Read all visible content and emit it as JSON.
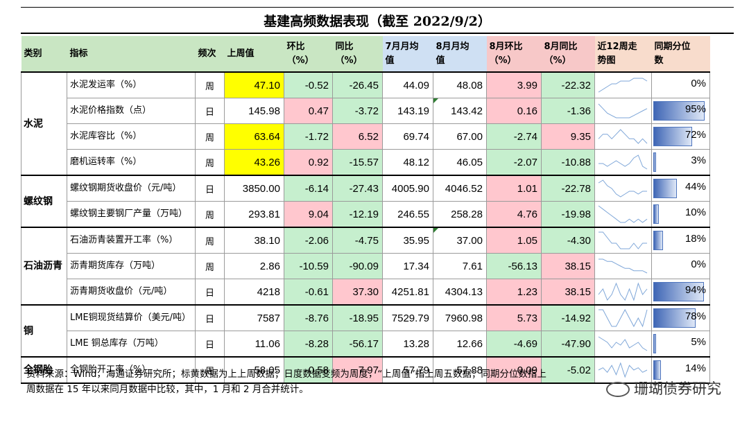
{
  "title": "基建高频数据表现（截至 2022/9/2）",
  "headers": {
    "cat": "类别",
    "indicator": "指标",
    "freq": "频次",
    "last": "上周值",
    "wow_l1": "环比",
    "wow_l2": "（%）",
    "yoy_l1": "同比",
    "yoy_l2": "（%）",
    "jul_l1": "7月月均",
    "jul_l2": "值",
    "aug_l1": "8月月均",
    "aug_l2": "值",
    "augwow_l1": "8月环比",
    "augwow_l2": "（%）",
    "augyoy_l1": "8月同比",
    "augyoy_l2": "（%）",
    "trend_l1": "近12周走",
    "trend_l2": "势图",
    "pctl_l1": "同期分位",
    "pctl_l2": "数"
  },
  "groups": [
    {
      "name": "水泥",
      "rows": 4
    },
    {
      "name": "螺纹钢",
      "rows": 2
    },
    {
      "name": "石油沥青",
      "rows": 3
    },
    {
      "name": "铜",
      "rows": 2
    },
    {
      "name": "全钢胎",
      "rows": 1
    }
  ],
  "rows": [
    {
      "name": "水泥发运率（%）",
      "freq": "周",
      "last": "47.10",
      "wow": "-0.52",
      "yoy": "-26.45",
      "jul": "44.09",
      "aug": "48.08",
      "augwow": "3.99",
      "augyoy": "-22.32",
      "pctl": "0%",
      "pv": 0
    },
    {
      "name": "水泥价格指数（点）",
      "freq": "日",
      "last": "145.98",
      "wow": "0.47",
      "yoy": "-3.72",
      "jul": "143.19",
      "aug": "143.42",
      "augwow": "0.16",
      "augyoy": "-1.36",
      "pctl": "95%",
      "pv": 0.95
    },
    {
      "name": "水泥库容比（%）",
      "freq": "周",
      "last": "63.64",
      "wow": "-1.72",
      "yoy": "6.52",
      "jul": "69.74",
      "aug": "67.00",
      "augwow": "-2.74",
      "augyoy": "9.35",
      "pctl": "72%",
      "pv": 0.72
    },
    {
      "name": "磨机运转率（%）",
      "freq": "周",
      "last": "43.26",
      "wow": "0.92",
      "yoy": "-15.57",
      "jul": "48.12",
      "aug": "46.05",
      "augwow": "-2.07",
      "augyoy": "-10.88",
      "pctl": "3%",
      "pv": 0.03
    },
    {
      "name": "螺纹钢期货收盘价（元/吨）",
      "freq": "日",
      "last": "3850.00",
      "wow": "-6.14",
      "yoy": "-27.43",
      "jul": "4005.90",
      "aug": "4046.52",
      "augwow": "1.01",
      "augyoy": "-22.78",
      "pctl": "44%",
      "pv": 0.44
    },
    {
      "name": "螺纹钢主要钢厂产量（万吨）",
      "freq": "周",
      "last": "293.81",
      "wow": "9.04",
      "yoy": "-12.19",
      "jul": "246.55",
      "aug": "258.28",
      "augwow": "4.76",
      "augyoy": "-19.98",
      "pctl": "10%",
      "pv": 0.1
    },
    {
      "name": "石油沥青装置开工率（%）",
      "freq": "周",
      "last": "38.10",
      "wow": "-2.06",
      "yoy": "-4.75",
      "jul": "35.95",
      "aug": "37.00",
      "augwow": "1.05",
      "augyoy": "-4.30",
      "pctl": "18%",
      "pv": 0.18
    },
    {
      "name": "沥青期货库存（万吨）",
      "freq": "周",
      "last": "2.86",
      "wow": "-10.59",
      "yoy": "-90.09",
      "jul": "17.34",
      "aug": "7.61",
      "augwow": "-56.13",
      "augyoy": "38.15",
      "pctl": "0%",
      "pv": 0
    },
    {
      "name": "沥青期货收盘价（元/吨）",
      "freq": "日",
      "last": "4218",
      "wow": "-0.61",
      "yoy": "37.30",
      "jul": "4251.81",
      "aug": "4304.13",
      "augwow": "1.23",
      "augyoy": "38.15",
      "pctl": "94%",
      "pv": 0.94
    },
    {
      "name": "LME铜现货结算价（美元/吨）",
      "freq": "日",
      "last": "7587",
      "wow": "-8.76",
      "yoy": "-18.95",
      "jul": "7529.79",
      "aug": "7960.98",
      "augwow": "5.73",
      "augyoy": "-14.92",
      "pctl": "78%",
      "pv": 0.78
    },
    {
      "name": "LME 铜总库存（万吨）",
      "freq": "日",
      "last": "11.06",
      "wow": "-8.28",
      "yoy": "-56.17",
      "jul": "13.28",
      "aug": "12.66",
      "augwow": "-4.69",
      "augyoy": "-47.90",
      "pctl": "5%",
      "pv": 0.05
    },
    {
      "name": "全钢胎开工率（%）",
      "freq": "周",
      "last": "58.05",
      "wow": "-0.58",
      "yoy": "7.97",
      "jul": "57.79",
      "aug": "57.88",
      "augwow": "0.09",
      "augyoy": "-5.02",
      "pctl": "14%",
      "pv": 0.14
    }
  ],
  "sparklines": [
    [
      3,
      4,
      5,
      6,
      6,
      7,
      7,
      7,
      8,
      8,
      8,
      7
    ],
    [
      9,
      7,
      5,
      4,
      3,
      3,
      3,
      3,
      4,
      5,
      6,
      7
    ],
    [
      5,
      6,
      6,
      5,
      6,
      7,
      6,
      5,
      5,
      4,
      5,
      4
    ],
    [
      6,
      6,
      5,
      6,
      7,
      6,
      5,
      6,
      8,
      9,
      5,
      4
    ],
    [
      7,
      8,
      6,
      5,
      3,
      2,
      3,
      4,
      4,
      3,
      4,
      4
    ],
    [
      8,
      7,
      6,
      5,
      4,
      3,
      3,
      4,
      3,
      4,
      3,
      4
    ],
    [
      6,
      6,
      5,
      4,
      4,
      3,
      3,
      3,
      4,
      3,
      4,
      4
    ],
    [
      7,
      7,
      6,
      6,
      5,
      4,
      3,
      3,
      2,
      2,
      2,
      1
    ],
    [
      4,
      5,
      3,
      4,
      6,
      4,
      3,
      5,
      3,
      6,
      4,
      5
    ],
    [
      5,
      5,
      4,
      3,
      3,
      4,
      5,
      4,
      3,
      4,
      3,
      5
    ],
    [
      7,
      6,
      5,
      3,
      5,
      4,
      6,
      3,
      4,
      5,
      3,
      2
    ],
    [
      5,
      6,
      4,
      7,
      3,
      8,
      2,
      7,
      5,
      6,
      4,
      5
    ]
  ],
  "sparkline_color": "#7ea6d8",
  "note_line1": "资料来源：Wind，海通证券研究所；标黄数据为上上周数据；日度数据变频为周度，“上周值”指上周五数据；同期分位数指上",
  "note_line2": "周数据在 15 年以来同月数据中比较，其中，1 月和 2 月合并统计。",
  "watermark": "珊瑚债券研究"
}
